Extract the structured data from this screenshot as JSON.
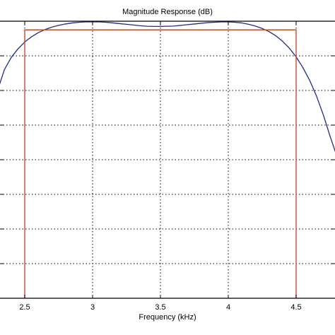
{
  "chart_data": {
    "type": "line",
    "title": "Magnitude Response (dB)",
    "xlabel": "Frequency (kHz)",
    "ylabel": "",
    "x_ticks": [
      2.5,
      3,
      3.5,
      4,
      4.5
    ],
    "x_tick_labels": [
      "2.5",
      "3",
      "3.5",
      "4",
      "4.5"
    ],
    "y_gridlines": 8,
    "grid": true,
    "grid_style": "dotted",
    "xlim": [
      2.3,
      4.8
    ],
    "ylim": [
      0,
      8
    ],
    "colors": {
      "filter_response": "#1f2a8c",
      "ideal_response": "#c0502a",
      "grid": "#000000"
    },
    "series": [
      {
        "type": "line",
        "color": "#1f2a8c",
        "x": [
          2.3,
          2.35,
          2.4,
          2.45,
          2.5,
          2.55,
          2.6,
          2.65,
          2.7,
          2.75,
          2.8,
          2.85,
          2.9,
          2.95,
          3.0,
          3.05,
          3.1,
          3.15,
          3.2,
          3.25,
          3.3,
          3.35,
          3.4,
          3.45,
          3.5,
          3.55,
          3.6,
          3.65,
          3.7,
          3.75,
          3.8,
          3.85,
          3.9,
          3.95,
          4.0,
          4.05,
          4.1,
          4.15,
          4.2,
          4.25,
          4.3,
          4.35,
          4.4,
          4.45,
          4.5,
          4.55,
          4.6,
          4.65,
          4.7,
          4.75,
          4.8
        ],
        "y": [
          6.0,
          6.6,
          6.95,
          7.2,
          7.4,
          7.55,
          7.67,
          7.76,
          7.83,
          7.88,
          7.92,
          7.95,
          7.97,
          7.98,
          7.98,
          7.98,
          7.97,
          7.95,
          7.93,
          7.91,
          7.89,
          7.87,
          7.855,
          7.85,
          7.85,
          7.855,
          7.86,
          7.88,
          7.9,
          7.92,
          7.94,
          7.96,
          7.97,
          7.98,
          7.98,
          7.97,
          7.95,
          7.91,
          7.86,
          7.79,
          7.7,
          7.58,
          7.42,
          7.22,
          6.97,
          6.66,
          6.29,
          5.84,
          5.3,
          4.68,
          4.1
        ]
      },
      {
        "type": "line",
        "color": "#c0502a",
        "x": [
          2.5,
          2.5,
          4.5,
          4.5
        ],
        "y": [
          0,
          7.75,
          7.75,
          0
        ]
      }
    ]
  }
}
